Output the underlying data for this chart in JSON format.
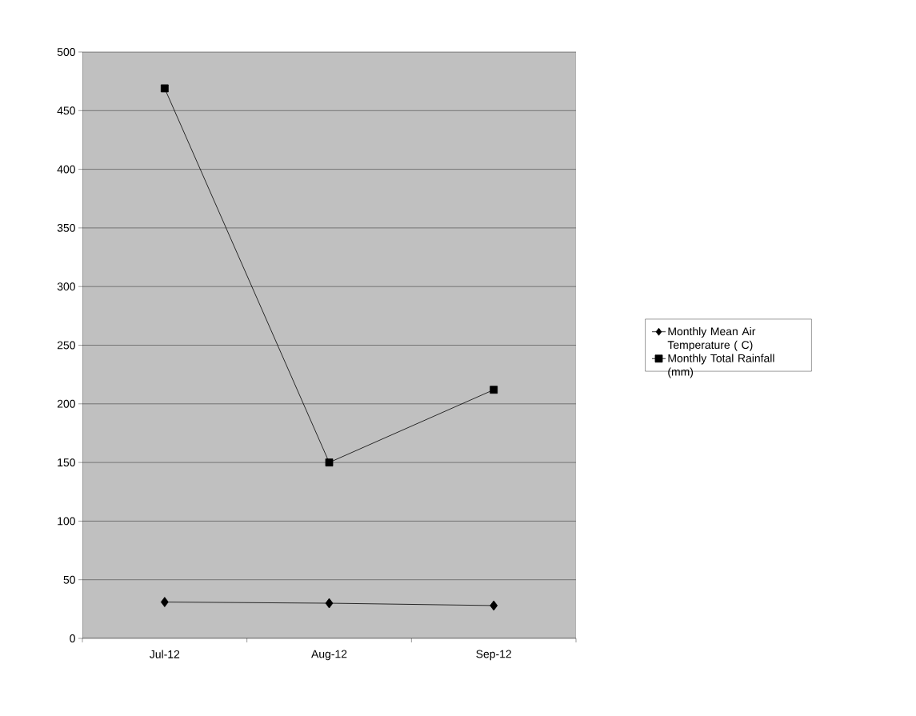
{
  "chart_data": {
    "type": "line",
    "categories": [
      "Jul-12",
      "Aug-12",
      "Sep-12"
    ],
    "series": [
      {
        "name": "Monthly Mean Air Temperature ( C)",
        "color": "#000000",
        "marker": "diamond",
        "values": [
          31,
          30,
          28
        ]
      },
      {
        "name": "Monthly Total Rainfall (mm)",
        "color": "#000000",
        "marker": "square",
        "values": [
          469,
          150,
          212
        ]
      }
    ],
    "ylim": [
      0,
      500
    ],
    "yticks": [
      0,
      50,
      100,
      150,
      200,
      250,
      300,
      350,
      400,
      450,
      500
    ],
    "grid": "y",
    "legend": "right",
    "line_style": "solid"
  }
}
